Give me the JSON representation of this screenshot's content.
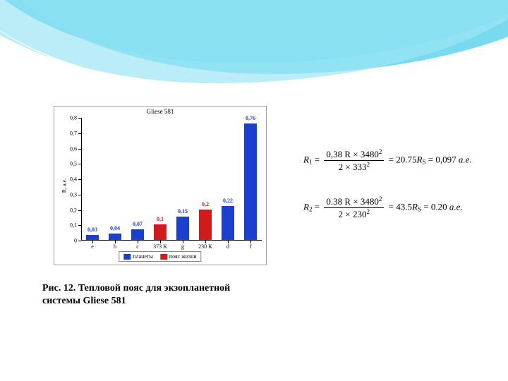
{
  "chart": {
    "type": "bar",
    "title": "Gliese 581",
    "ylabel": "R, а.е.",
    "ylim": [
      0,
      0.8
    ],
    "ytick_step": 0.1,
    "yticks": [
      "0",
      "0,1",
      "0,2",
      "0,3",
      "0,4",
      "0,5",
      "0,6",
      "0,7",
      "0,8"
    ],
    "categories": [
      "e",
      "b",
      "c",
      "373 K",
      "g",
      "230 K",
      "d",
      "f"
    ],
    "bars": [
      {
        "value_label": "0,03",
        "value": 0.03,
        "series": "planets"
      },
      {
        "value_label": "0,04",
        "value": 0.04,
        "series": "planets"
      },
      {
        "value_label": "0,07",
        "value": 0.07,
        "series": "planets"
      },
      {
        "value_label": "0,1",
        "value": 0.1,
        "series": "hz"
      },
      {
        "value_label": "0,15",
        "value": 0.15,
        "series": "planets"
      },
      {
        "value_label": "0,2",
        "value": 0.2,
        "series": "hz"
      },
      {
        "value_label": "0,22",
        "value": 0.22,
        "series": "planets"
      },
      {
        "value_label": "0,76",
        "value": 0.76,
        "series": "planets"
      }
    ],
    "series_colors": {
      "planets": "#1b3fd1",
      "hz": "#d21a1a"
    },
    "value_label_colors": {
      "planets": "#1b3fd1",
      "hz": "#d21a1a"
    },
    "legend": [
      {
        "label": "планеты",
        "series": "planets"
      },
      {
        "label": "пояс жизни",
        "series": "hz"
      }
    ],
    "bar_width_ratio": 0.55,
    "plot_bg": "#ffffff",
    "axis_color": "#000000",
    "label_fontsize": 8,
    "title_fontsize": 9
  },
  "caption": "Рис. 12. Тепловой пояс для экзопланетной системы Gliese 581",
  "formulas": {
    "r1": {
      "lhs_var": "R",
      "lhs_sub": "1",
      "num": "0,38 R × 3480",
      "num_sup": "2",
      "den": "2 × 333",
      "den_sup": "2",
      "mid_val": "20.75",
      "mid_var": "R",
      "mid_sub": "S",
      "result": "0,097",
      "unit": "а.е."
    },
    "r2": {
      "lhs_var": "R",
      "lhs_sub": "2",
      "num": "0.38 R × 3480",
      "num_sup": "2",
      "den": "2 × 230",
      "den_sup": "2",
      "mid_val": "43.5",
      "mid_var": "R",
      "mid_sub": "S",
      "result": "0.20",
      "unit": "а.е."
    }
  }
}
